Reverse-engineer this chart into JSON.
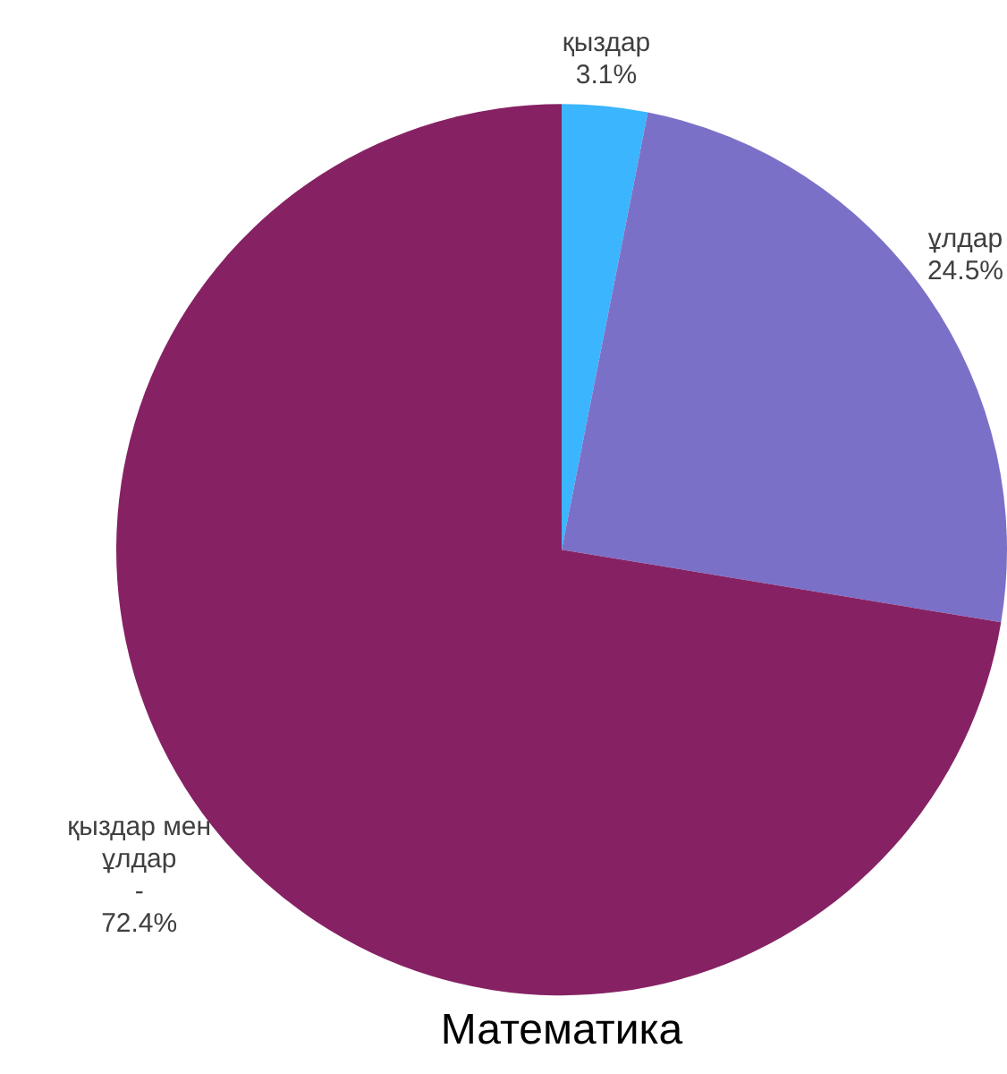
{
  "chart_data": {
    "type": "pie",
    "title": "Математика",
    "categories": [
      "қыздар",
      "ұлдар",
      "қыздар мен ұлдар\n-"
    ],
    "values": [
      3.1,
      24.5,
      72.4
    ],
    "colors": [
      "#3bb5fd",
      "#7b70c8",
      "#862264"
    ],
    "value_labels": [
      "3.1%",
      "24.5%",
      "72.4%"
    ]
  }
}
